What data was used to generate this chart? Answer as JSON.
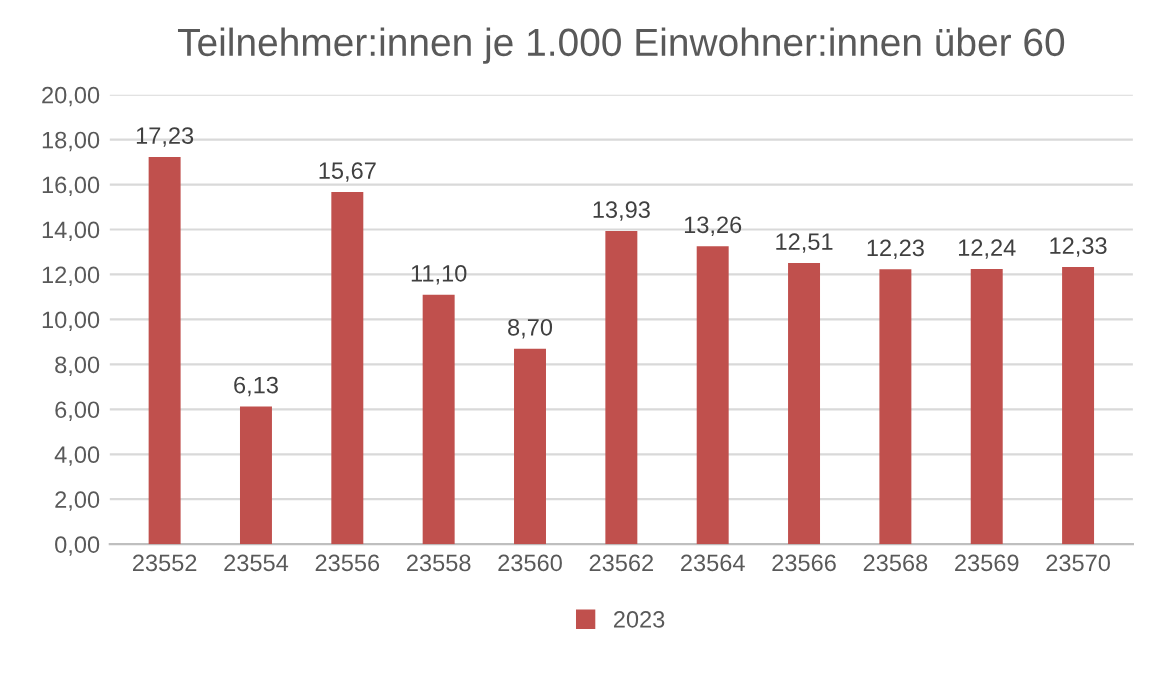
{
  "chart_data": {
    "type": "bar",
    "title": "Teilnehmer:innen je 1.000 Einwohner:innen über 60",
    "categories": [
      "23552",
      "23554",
      "23556",
      "23558",
      "23560",
      "23562",
      "23564",
      "23566",
      "23568",
      "23569",
      "23570"
    ],
    "series": [
      {
        "name": "2023",
        "color": "#c0504d",
        "values": [
          17.23,
          6.13,
          15.67,
          11.1,
          8.7,
          13.93,
          13.26,
          12.51,
          12.23,
          12.24,
          12.33
        ],
        "value_labels": [
          "17,23",
          "6,13",
          "15,67",
          "11,10",
          "8,70",
          "13,93",
          "13,26",
          "12,51",
          "12,23",
          "12,24",
          "12,33"
        ]
      }
    ],
    "ylim": [
      0,
      20
    ],
    "yticks": [
      {
        "value": 0,
        "label": "0,00"
      },
      {
        "value": 2,
        "label": "2,00"
      },
      {
        "value": 4,
        "label": "4,00"
      },
      {
        "value": 6,
        "label": "6,00"
      },
      {
        "value": 8,
        "label": "8,00"
      },
      {
        "value": 10,
        "label": "10,00"
      },
      {
        "value": 12,
        "label": "12,00"
      },
      {
        "value": 14,
        "label": "14,00"
      },
      {
        "value": 16,
        "label": "16,00"
      },
      {
        "value": 18,
        "label": "18,00"
      },
      {
        "value": 20,
        "label": "20,00"
      }
    ],
    "grid": "y",
    "legend": "bottom"
  }
}
